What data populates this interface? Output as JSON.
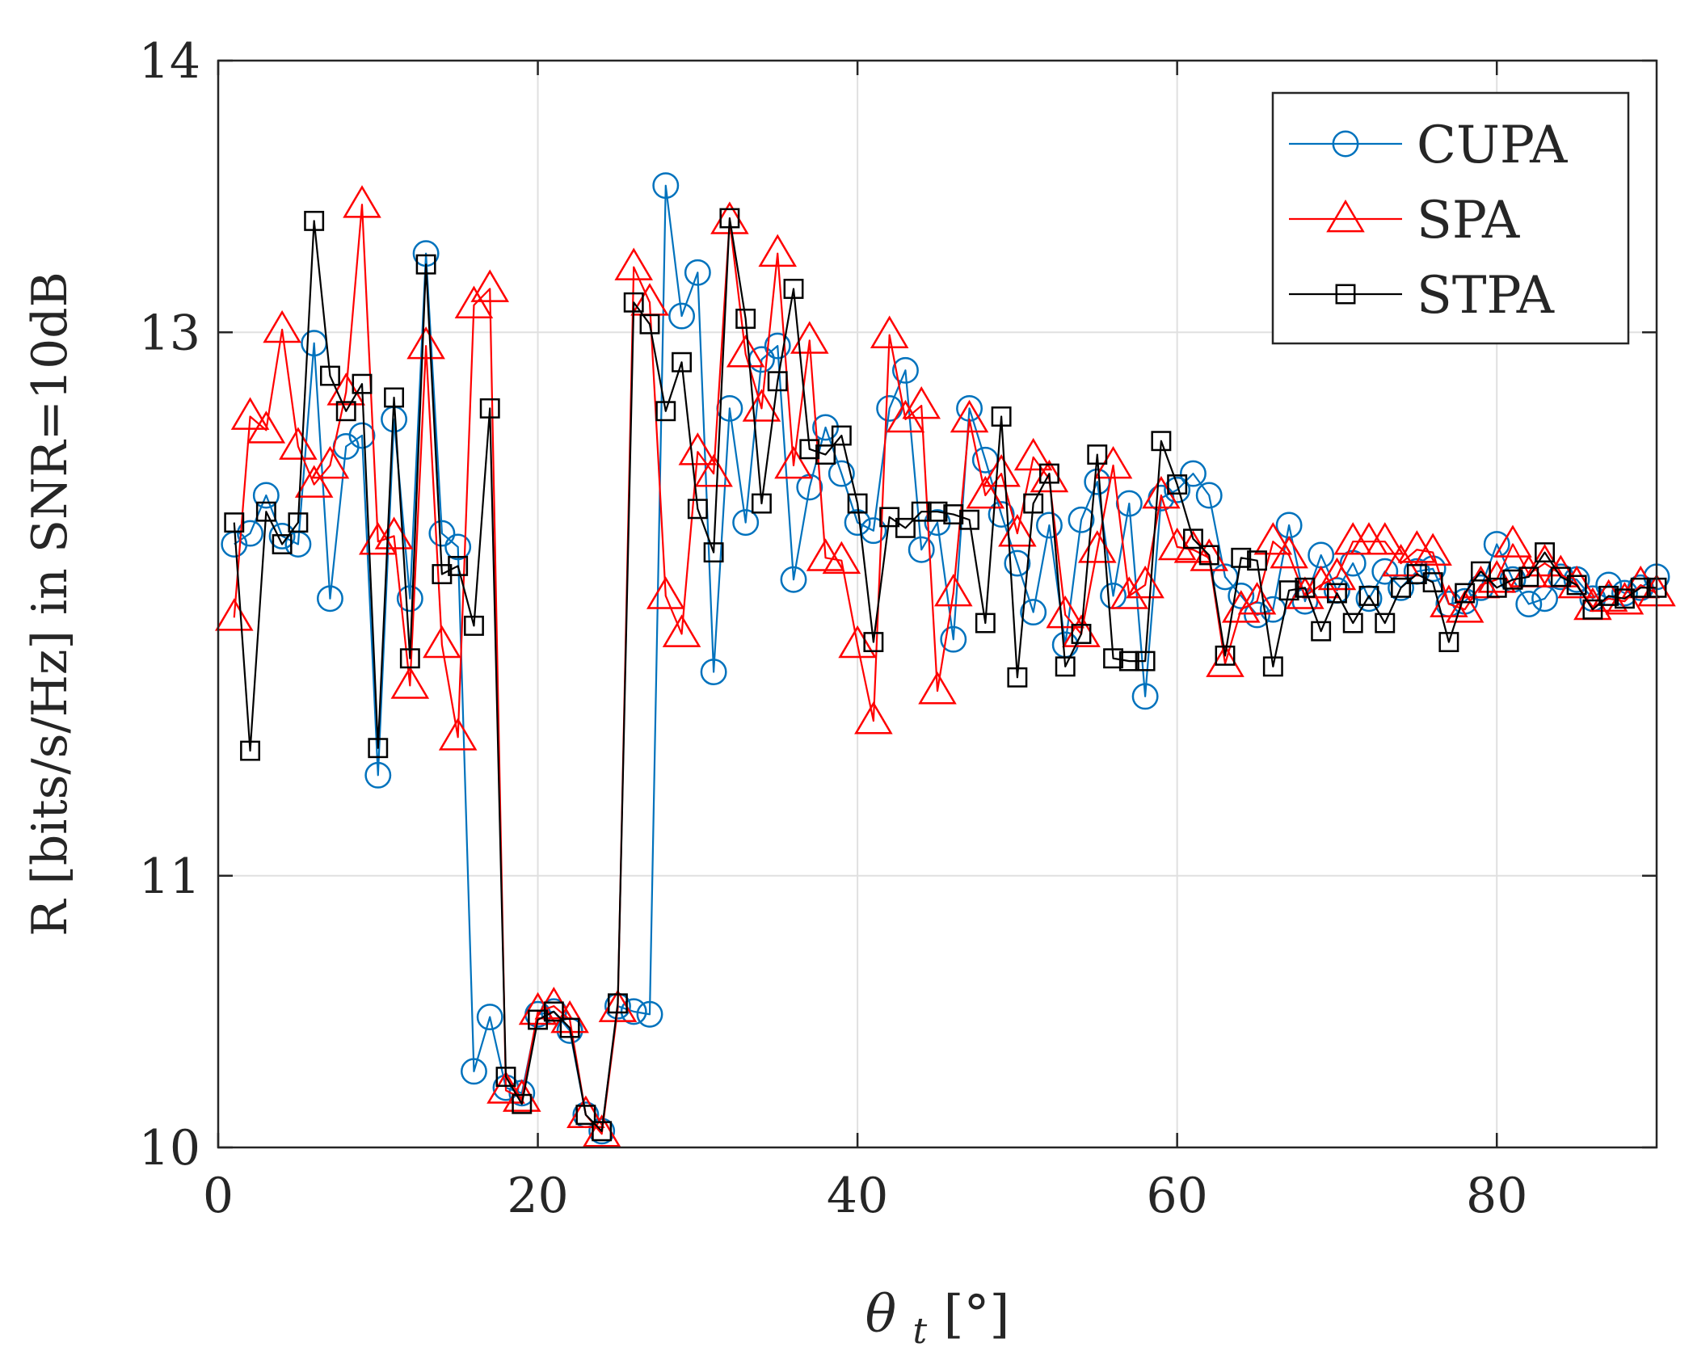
{
  "chart_data": {
    "type": "line",
    "title": "",
    "xlabel": "θ_t [°]",
    "xlabel_main": "θ",
    "xlabel_sub": "t",
    "xlabel_unit": " [°]",
    "ylabel": "R [bits/s/Hz] in SNR=10dB",
    "xlim": [
      0,
      90
    ],
    "ylim": [
      10,
      14
    ],
    "xticks": [
      0,
      20,
      40,
      60,
      80
    ],
    "yticks": [
      10,
      11,
      13,
      14
    ],
    "xtick_labels": [
      "0",
      "20",
      "40",
      "60",
      "80"
    ],
    "ytick_labels": [
      "10",
      "11",
      "13",
      "14"
    ],
    "grid": true,
    "legend_position": "top-right",
    "x": [
      1,
      2,
      3,
      4,
      5,
      6,
      7,
      8,
      9,
      10,
      11,
      12,
      13,
      14,
      15,
      16,
      17,
      18,
      19,
      20,
      21,
      22,
      23,
      24,
      25,
      26,
      27,
      28,
      29,
      30,
      31,
      32,
      33,
      34,
      35,
      36,
      37,
      38,
      39,
      40,
      41,
      42,
      43,
      44,
      45,
      46,
      47,
      48,
      49,
      50,
      51,
      52,
      53,
      54,
      55,
      56,
      57,
      58,
      59,
      60,
      61,
      62,
      63,
      64,
      65,
      66,
      67,
      68,
      69,
      70,
      71,
      72,
      73,
      74,
      75,
      76,
      77,
      78,
      79,
      80,
      81,
      82,
      83,
      84,
      85,
      86,
      87,
      88,
      89,
      90
    ],
    "series": [
      {
        "name": "CUPA",
        "color": "#0072BD",
        "marker": "circle",
        "values": [
          12.22,
          12.26,
          12.4,
          12.25,
          12.22,
          12.96,
          12.02,
          12.58,
          12.62,
          11.37,
          12.68,
          12.02,
          13.29,
          12.26,
          12.21,
          10.28,
          10.48,
          10.22,
          10.2,
          10.49,
          10.5,
          10.43,
          10.12,
          10.06,
          10.52,
          10.5,
          10.49,
          13.54,
          13.06,
          13.22,
          11.75,
          12.72,
          12.3,
          12.9,
          12.95,
          12.09,
          12.43,
          12.65,
          12.48,
          12.3,
          12.27,
          12.72,
          12.86,
          12.2,
          12.3,
          11.87,
          12.72,
          12.53,
          12.33,
          12.15,
          11.97,
          12.29,
          11.85,
          12.31,
          12.45,
          12.03,
          12.37,
          11.66,
          12.39,
          12.42,
          12.48,
          12.4,
          12.1,
          12.03,
          11.96,
          11.98,
          12.29,
          12.01,
          12.18,
          12.05,
          12.15,
          12.02,
          12.12,
          12.06,
          12.12,
          12.13,
          12.0,
          12.01,
          12.06,
          12.22,
          12.09,
          12.0,
          12.02,
          12.1,
          12.09,
          12.02,
          12.07,
          12.04,
          12.06,
          12.1
        ]
      },
      {
        "name": "SPA",
        "color": "#FF0000",
        "marker": "triangle",
        "values": [
          11.95,
          12.69,
          12.64,
          13.01,
          12.58,
          12.44,
          12.51,
          12.78,
          13.47,
          12.23,
          12.25,
          11.7,
          12.95,
          11.85,
          11.51,
          13.1,
          13.16,
          10.21,
          10.18,
          10.5,
          10.52,
          10.47,
          10.12,
          10.05,
          10.51,
          13.24,
          13.11,
          12.03,
          11.89,
          12.56,
          12.48,
          13.41,
          12.92,
          12.72,
          13.29,
          12.51,
          12.97,
          12.17,
          12.16,
          11.85,
          11.57,
          12.99,
          12.68,
          12.73,
          11.68,
          12.04,
          12.68,
          12.4,
          12.48,
          12.26,
          12.54,
          12.46,
          11.96,
          11.89,
          12.2,
          12.51,
          12.03,
          12.07,
          12.4,
          12.21,
          12.2,
          12.17,
          11.78,
          11.98,
          12.01,
          12.23,
          12.18,
          12.03,
          12.07,
          12.1,
          12.23,
          12.23,
          12.23,
          12.15,
          12.2,
          12.19,
          12.0,
          11.98,
          12.07,
          12.09,
          12.22,
          12.11,
          12.15,
          12.11,
          12.07,
          11.99,
          12.02,
          12.01,
          12.07,
          12.04
        ]
      },
      {
        "name": "STPA",
        "color": "#000000",
        "marker": "square",
        "values": [
          12.3,
          11.46,
          12.34,
          12.22,
          12.3,
          13.41,
          12.84,
          12.71,
          12.81,
          11.47,
          12.76,
          11.8,
          13.25,
          12.11,
          12.14,
          11.92,
          12.72,
          10.26,
          10.16,
          10.47,
          10.5,
          10.44,
          10.12,
          10.06,
          10.53,
          13.11,
          13.03,
          12.71,
          12.89,
          12.35,
          12.19,
          13.42,
          13.05,
          12.37,
          12.82,
          13.16,
          12.57,
          12.55,
          12.62,
          12.37,
          11.86,
          12.32,
          12.28,
          12.34,
          12.34,
          12.33,
          12.31,
          11.93,
          12.69,
          11.73,
          12.37,
          12.48,
          11.77,
          11.89,
          12.55,
          11.8,
          11.79,
          11.79,
          12.6,
          12.44,
          12.24,
          12.18,
          11.81,
          12.17,
          12.16,
          11.77,
          12.05,
          12.06,
          11.9,
          12.04,
          11.93,
          12.03,
          11.93,
          12.06,
          12.11,
          12.08,
          11.86,
          12.04,
          12.12,
          12.06,
          12.09,
          12.1,
          12.19,
          12.1,
          12.07,
          11.98,
          12.03,
          12.02,
          12.06,
          12.06
        ]
      }
    ]
  }
}
